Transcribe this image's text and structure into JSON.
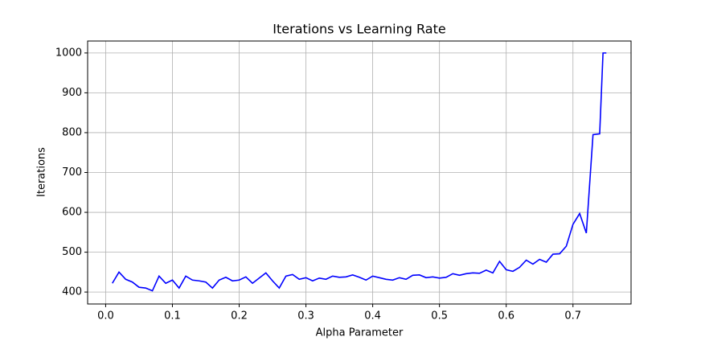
{
  "chart_data": {
    "type": "line",
    "title": "Iterations vs Learning Rate",
    "x_label": "Alpha Parameter",
    "y_label": "Iterations",
    "x": [
      0.01,
      0.02,
      0.03,
      0.04,
      0.05,
      0.06,
      0.07,
      0.08,
      0.09,
      0.1,
      0.11,
      0.12,
      0.13,
      0.14,
      0.15,
      0.16,
      0.17,
      0.18,
      0.19,
      0.2,
      0.21,
      0.22,
      0.23,
      0.24,
      0.25,
      0.26,
      0.27,
      0.28,
      0.29,
      0.3,
      0.31,
      0.32,
      0.33,
      0.34,
      0.35,
      0.36,
      0.37,
      0.38,
      0.39,
      0.4,
      0.41,
      0.42,
      0.43,
      0.44,
      0.45,
      0.46,
      0.47,
      0.48,
      0.49,
      0.5,
      0.51,
      0.52,
      0.53,
      0.54,
      0.55,
      0.56,
      0.57,
      0.58,
      0.59,
      0.6,
      0.61,
      0.62,
      0.63,
      0.64,
      0.65,
      0.66,
      0.67,
      0.68,
      0.69,
      0.7,
      0.71,
      0.72,
      0.73,
      0.74,
      0.745,
      0.75
    ],
    "series": [
      {
        "name": "Iterations",
        "color": "#0000ff",
        "values": [
          422,
          450,
          432,
          425,
          412,
          410,
          403,
          440,
          422,
          430,
          410,
          440,
          430,
          428,
          425,
          410,
          430,
          437,
          428,
          430,
          438,
          422,
          435,
          448,
          428,
          410,
          440,
          444,
          432,
          436,
          428,
          435,
          432,
          440,
          437,
          438,
          443,
          437,
          430,
          440,
          436,
          432,
          430,
          436,
          432,
          442,
          443,
          436,
          438,
          435,
          437,
          446,
          442,
          446,
          448,
          447,
          455,
          448,
          477,
          456,
          452,
          462,
          480,
          470,
          482,
          475,
          495,
          496,
          515,
          570,
          597,
          548,
          795,
          797,
          1000,
          1000
        ]
      }
    ],
    "xlim": [
      -0.027,
      0.787
    ],
    "ylim": [
      370,
      1030
    ],
    "xticks": [
      {
        "value": 0,
        "label": "0.0"
      },
      0.1,
      0.2,
      0.3,
      0.4,
      0.5,
      0.6,
      0.7
    ],
    "yticks": [
      400,
      500,
      600,
      700,
      800,
      900,
      1000
    ],
    "grid": true
  }
}
